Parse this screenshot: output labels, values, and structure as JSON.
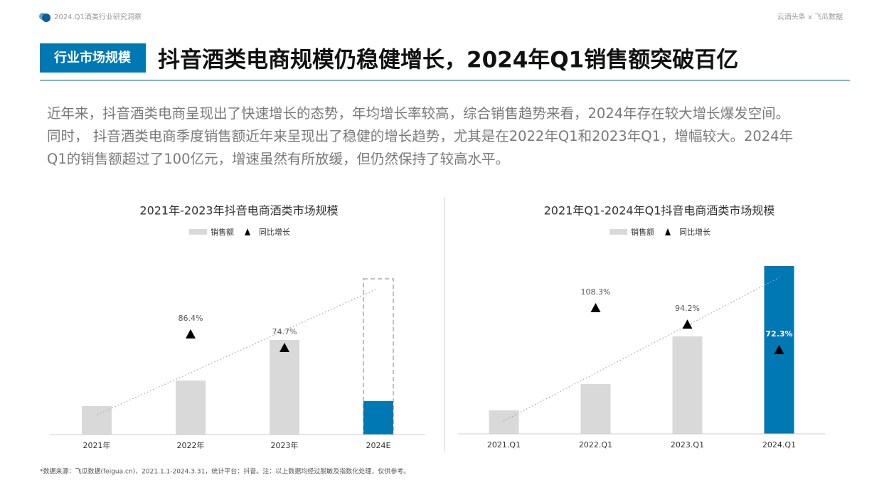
{
  "header": {
    "report": "2024.Q1酒类行业研究洞察",
    "brand": "云酒头条 x 飞瓜数据",
    "tag": "行业市场规模",
    "title": "抖音酒类电商规模仍稳健增长，2024年Q1销售额突破百亿"
  },
  "paragraph": [
    "近年来，抖音酒类电商呈现出了快速增长的态势，年均增长率较高，综合销售趋势来看，2024年存在较大增长爆发空间。",
    "同时， 抖音酒类电商季度销售额近年来呈现出了稳健的增长趋势，尤其是在2022年Q1和2023年Q1，增幅较大。2024年",
    "Q1的销售额超过了100亿元，增速虽然有所放缓，但仍然保持了较高水平。"
  ],
  "footnote": "*数据来源：飞瓜数据(feigua.cn)，2021.1.1-2024.3.31，统计平台：抖音。注：以上数据均经过脱敏及指数化处理，仅供参考。",
  "chart_data": [
    {
      "type": "bar",
      "title": "2021年-2023年抖音电商酒类市场规模",
      "categories": [
        "2021年",
        "2022年",
        "2023年",
        "2024E"
      ],
      "ylim": [
        0,
        250
      ],
      "y2lim": [
        0,
        153
      ],
      "series": [
        {
          "name": "销售额",
          "color": "#d9d9d9",
          "colors": [
            "#d9d9d9",
            "#d9d9d9",
            "#d9d9d9",
            "#0078b4"
          ],
          "values": [
            40,
            76,
            133,
            47
          ],
          "estimate_values": [
            null,
            null,
            null,
            219
          ]
        },
        {
          "name": "同比增长",
          "color": "#000000",
          "axis": "y2",
          "values": [
            null,
            86.4,
            74.7,
            null
          ],
          "value_labels": [
            null,
            "86.4%",
            "74.7%",
            null
          ]
        }
      ]
    },
    {
      "type": "bar",
      "title": "2021年Q1-2024年Q1抖音电商酒类市场规模",
      "categories": [
        "2021.Q1",
        "2022.Q1",
        "2023.Q1",
        "2024.Q1"
      ],
      "ylim": [
        0,
        250
      ],
      "y2lim": [
        0,
        153
      ],
      "series": [
        {
          "name": "销售额",
          "color": "#d9d9d9",
          "colors": [
            "#d9d9d9",
            "#d9d9d9",
            "#d9d9d9",
            "#0078b4"
          ],
          "values": [
            33,
            70,
            137,
            236
          ]
        },
        {
          "name": "同比增长",
          "color": "#000000",
          "axis": "y2",
          "values": [
            null,
            108.3,
            94.2,
            72.3
          ],
          "value_labels": [
            null,
            "108.3%",
            "94.2%",
            "72.3%"
          ]
        }
      ]
    }
  ]
}
